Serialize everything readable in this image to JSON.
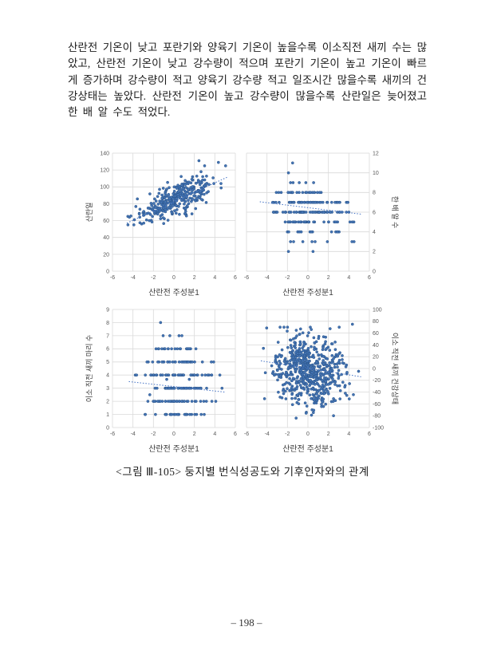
{
  "page": {
    "paragraph": "산란전 기온이 낮고 포란기와 양육기 기온이 높을수록 이소직전 새끼 수는 많았고, 산란전 기온이 낮고 강수량이 적으며 포란기 기온이 높고 기온이 빠르게 증가하며 강수량이 적고 양육기 강수량 적고 일조시간 많을수록 새끼의 건강상태는 높았다. 산란전 기온이 높고 강수량이 많을수록 산란일은 늦어졌고 한 배 알 수도 적었다.",
    "caption": "<그림 Ⅲ-105> 둥지별 번식성공도와 기후인자와의 관계",
    "page_number": "– 198 –"
  },
  "colors": {
    "point_fill": "#4474b4",
    "point_stroke": "#2a5489",
    "grid": "#d9d9d9",
    "tick_text": "#595959",
    "axis_title_text": "#3b3b3b",
    "trend": "#4472c4"
  },
  "chart_data": [
    {
      "type": "scatter",
      "title": "",
      "xlabel": "산란전 주성분1",
      "ylabel": "산란일",
      "ylabel_side": "left",
      "xlim": [
        -6,
        6
      ],
      "xticks": [
        -6,
        -4,
        -2,
        0,
        2,
        4,
        6
      ],
      "ylim": [
        0,
        140
      ],
      "yticks": [
        0,
        20,
        40,
        60,
        80,
        100,
        120,
        140
      ],
      "grid": true,
      "legend": "none",
      "trend": {
        "x1": -4.6,
        "y1": 57,
        "x2": 5.3,
        "y2": 112
      },
      "points_spec": {
        "kind": "linear",
        "seed": 7,
        "n": 330,
        "x_mean": 0.2,
        "x_sd": 1.75,
        "x_min": -4.6,
        "x_max": 5.2,
        "intercept": 83,
        "slope": 5.5,
        "noise_sd": 9,
        "y_min": 55,
        "y_max": 131,
        "extra": [
          [
            -4.5,
            65
          ],
          [
            -4.35,
            64
          ],
          [
            -4.2,
            65.5
          ],
          [
            2.45,
            131
          ],
          [
            4.35,
            129
          ],
          [
            5.05,
            125
          ],
          [
            3.0,
            125
          ],
          [
            2.65,
            118
          ],
          [
            4.6,
            104
          ],
          [
            3.9,
            104
          ]
        ]
      }
    },
    {
      "type": "scatter",
      "title": "",
      "xlabel": "산란전 주성분1",
      "ylabel": "한 배 알 수",
      "ylabel_side": "right",
      "xlim": [
        -6,
        6
      ],
      "xticks": [
        -6,
        -4,
        -2,
        0,
        2,
        4,
        6
      ],
      "ylim": [
        0,
        12
      ],
      "yticks": [
        0,
        2,
        4,
        6,
        8,
        10,
        12
      ],
      "grid": true,
      "legend": "none",
      "trend": {
        "x1": -4.7,
        "y1": 7.05,
        "x2": 5.2,
        "y2": 5.8
      },
      "points_spec": {
        "kind": "rows",
        "seed": 11,
        "x_mean": 0,
        "x_sd": 1.9,
        "rows": [
          {
            "y": 11,
            "xs": [
              -1.5
            ]
          },
          {
            "y": 10,
            "xs": [
              -1.9
            ]
          },
          {
            "y": 9,
            "xs": [
              -1.7,
              -1.45,
              -0.85,
              -0.2,
              0.55
            ]
          },
          {
            "y": 8,
            "n": 26,
            "x_min": -4.4,
            "x_max": 1.9
          },
          {
            "y": 7,
            "n": 54,
            "x_min": -3.7,
            "x_max": 4.6
          },
          {
            "y": 6,
            "n": 60,
            "x_min": -4.6,
            "x_max": 5.1
          },
          {
            "y": 5,
            "n": 38,
            "x_min": -3.1,
            "x_max": 4.5
          },
          {
            "y": 4,
            "n": 13,
            "x_min": -2.6,
            "x_max": 4.9
          },
          {
            "y": 3,
            "xs": [
              -1.7,
              -1.4,
              -0.5,
              0.4,
              0.7,
              1.9,
              4.3,
              4.5
            ]
          },
          {
            "y": 2,
            "xs": [
              -1.9,
              0.5
            ]
          }
        ]
      }
    },
    {
      "type": "scatter",
      "title": "",
      "xlabel": "산란전 주성분1",
      "ylabel": "이소 직전 새끼 마리 수",
      "ylabel_side": "left",
      "xlim": [
        -6,
        6
      ],
      "xticks": [
        -6,
        -4,
        -2,
        0,
        2,
        4,
        6
      ],
      "ylim": [
        0,
        9
      ],
      "yticks": [
        0,
        1,
        2,
        3,
        4,
        5,
        6,
        7,
        8,
        9
      ],
      "grid": true,
      "legend": "none",
      "trend": {
        "x1": -4.4,
        "y1": 3.5,
        "x2": 5.0,
        "y2": 2.7
      },
      "points_spec": {
        "kind": "rows",
        "seed": 23,
        "x_mean": 0.3,
        "x_sd": 1.9,
        "rows": [
          {
            "y": 8,
            "xs": [
              -1.3
            ]
          },
          {
            "y": 7,
            "xs": [
              -1.05,
              -0.4,
              0.5,
              0.78
            ]
          },
          {
            "y": 6,
            "n": 24,
            "x_min": -2.1,
            "x_max": 2.4
          },
          {
            "y": 5,
            "n": 34,
            "x_min": -3.2,
            "x_max": 5.0
          },
          {
            "y": 4,
            "n": 44,
            "x_min": -4.5,
            "x_max": 4.5
          },
          {
            "y": 3,
            "n": 48,
            "x_min": -3.2,
            "x_max": 4.8
          },
          {
            "y": 2,
            "n": 40,
            "x_min": -4.4,
            "x_max": 4.4
          },
          {
            "y": 1,
            "n": 26,
            "x_min": -3.2,
            "x_max": 5.0
          }
        ],
        "extra": [
          [
            -0.7,
            3.67
          ],
          [
            1.5,
            3.67
          ],
          [
            -2.35,
            2.5
          ]
        ]
      }
    },
    {
      "type": "scatter",
      "title": "",
      "xlabel": "산란전 주성분1",
      "ylabel": "이소 직전 새끼 건강상태",
      "ylabel_side": "right",
      "xlim": [
        -6,
        6
      ],
      "xticks": [
        -6,
        -4,
        -2,
        0,
        2,
        4,
        6
      ],
      "ylim": [
        -100,
        100
      ],
      "yticks": [
        -100,
        -80,
        -60,
        -40,
        -20,
        0,
        20,
        40,
        60,
        80,
        100
      ],
      "grid": true,
      "legend": "none",
      "trend": {
        "x1": -4.6,
        "y1": 13,
        "x2": 5.2,
        "y2": -14
      },
      "points_spec": {
        "kind": "cloud",
        "seed": 41,
        "n": 620,
        "x_mean": 0.1,
        "x_sd": 1.7,
        "x_min": -4.6,
        "x_max": 5.2,
        "y_mean": -4,
        "y_sd": 30,
        "y_min": -86,
        "y_max": 70,
        "rho": -0.15,
        "extra": [
          [
            4.35,
            75
          ],
          [
            -1.15,
            -84
          ],
          [
            0.35,
            -79
          ],
          [
            2.5,
            -80
          ]
        ]
      }
    }
  ]
}
